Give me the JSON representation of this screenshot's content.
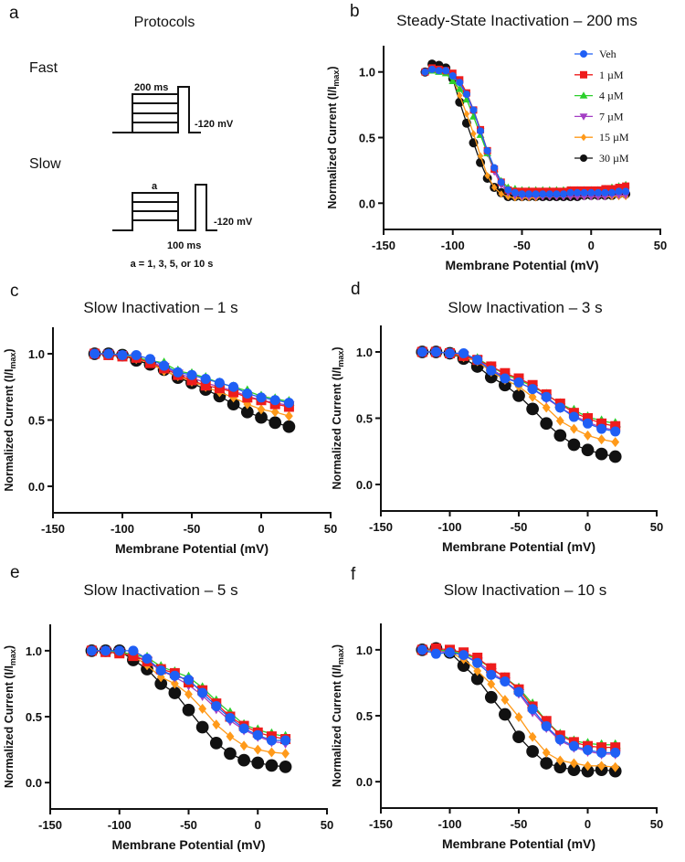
{
  "panel_a": {
    "label": "a",
    "title": "Protocols",
    "fast_label": "Fast",
    "slow_label": "Slow",
    "fast_duration": "200 ms",
    "fast_holding": "-120 mV",
    "slow_duration_var": "a",
    "slow_holding": "-120 mV",
    "slow_gap": "100 ms",
    "slow_note": "a = 1, 3, 5, or 10 s"
  },
  "legend": [
    {
      "name": "Veh",
      "color": "#1f5ff5",
      "marker": "circle"
    },
    {
      "name": "1 µM",
      "color": "#ee1c1c",
      "marker": "square"
    },
    {
      "name": "4 µM",
      "color": "#2ccf2c",
      "marker": "triangle-up"
    },
    {
      "name": "7 µM",
      "color": "#a43fc4",
      "marker": "triangle-down"
    },
    {
      "name": "15 µM",
      "color": "#ff9a1a",
      "marker": "diamond"
    },
    {
      "name": "30 µM",
      "color": "#111111",
      "marker": "circle"
    }
  ],
  "chart_data": [
    {
      "panel": "b",
      "type": "line",
      "title": "Steady-State Inactivation – 200 ms",
      "xlabel": "Membrane Potential (mV)",
      "ylabel": "Normalized Current (I/Imax)",
      "xlim": [
        -150,
        50
      ],
      "ylim": [
        -0.2,
        1.2
      ],
      "xticks": [
        -150,
        -100,
        -50,
        0,
        50
      ],
      "yticks": [
        "0.0",
        "0.5",
        "1.0"
      ],
      "legend": "top-right",
      "x": [
        -120,
        -115,
        -110,
        -105,
        -100,
        -95,
        -90,
        -85,
        -80,
        -75,
        -70,
        -65,
        -60,
        -55,
        -50,
        -45,
        -40,
        -35,
        -30,
        -25,
        -20,
        -15,
        -10,
        -5,
        0,
        5,
        10,
        15,
        20,
        25
      ],
      "series": [
        {
          "name": "Veh",
          "values": [
            1.0,
            1.02,
            1.01,
            1.01,
            0.97,
            0.92,
            0.83,
            0.71,
            0.55,
            0.4,
            0.27,
            0.16,
            0.1,
            0.08,
            0.07,
            0.07,
            0.07,
            0.07,
            0.07,
            0.07,
            0.07,
            0.08,
            0.08,
            0.08,
            0.08,
            0.08,
            0.08,
            0.08,
            0.09,
            0.09
          ]
        },
        {
          "name": "1 µM",
          "values": [
            1.0,
            1.03,
            1.02,
            1.01,
            0.99,
            0.94,
            0.84,
            0.71,
            0.56,
            0.4,
            0.26,
            0.16,
            0.1,
            0.09,
            0.09,
            0.09,
            0.09,
            0.09,
            0.09,
            0.09,
            0.09,
            0.1,
            0.1,
            0.1,
            0.1,
            0.1,
            0.11,
            0.11,
            0.12,
            0.13
          ]
        },
        {
          "name": "4 µM",
          "values": [
            1.0,
            1.01,
            1.0,
            0.99,
            0.93,
            0.87,
            0.79,
            0.66,
            0.52,
            0.38,
            0.26,
            0.17,
            0.12,
            0.11,
            0.1,
            0.1,
            0.1,
            0.1,
            0.1,
            0.1,
            0.1,
            0.1,
            0.1,
            0.1,
            0.1,
            0.1,
            0.11,
            0.12,
            0.13,
            0.14
          ]
        },
        {
          "name": "7 µM",
          "values": [
            1.0,
            1.02,
            1.01,
            1.0,
            0.96,
            0.91,
            0.82,
            0.7,
            0.55,
            0.38,
            0.24,
            0.14,
            0.08,
            0.06,
            0.05,
            0.05,
            0.05,
            0.05,
            0.05,
            0.05,
            0.05,
            0.05,
            0.05,
            0.05,
            0.05,
            0.05,
            0.05,
            0.06,
            0.06,
            0.06
          ]
        },
        {
          "name": "15 µM",
          "values": [
            1.0,
            1.03,
            1.02,
            1.01,
            0.95,
            0.82,
            0.68,
            0.53,
            0.36,
            0.21,
            0.12,
            0.07,
            0.05,
            0.04,
            0.04,
            0.04,
            0.04,
            0.05,
            0.05,
            0.05,
            0.05,
            0.05,
            0.05,
            0.05,
            0.05,
            0.05,
            0.05,
            0.05,
            0.05,
            0.05
          ]
        },
        {
          "name": "30 µM",
          "values": [
            1.0,
            1.06,
            1.05,
            1.03,
            0.95,
            0.77,
            0.61,
            0.46,
            0.31,
            0.19,
            0.12,
            0.08,
            0.05,
            0.05,
            0.05,
            0.05,
            0.05,
            0.05,
            0.05,
            0.05,
            0.05,
            0.05,
            0.05,
            0.06,
            0.06,
            0.06,
            0.06,
            0.06,
            0.07,
            0.07
          ]
        }
      ]
    },
    {
      "panel": "c",
      "type": "line",
      "title": "Slow Inactivation – 1 s",
      "xlabel": "Membrane Potential (mV)",
      "ylabel": "Normalized Current (I/Imax)",
      "xlim": [
        -150,
        50
      ],
      "ylim": [
        -0.2,
        1.2
      ],
      "xticks": [
        -150,
        -100,
        -50,
        0,
        50
      ],
      "yticks": [
        "0.0",
        "0.5",
        "1.0"
      ],
      "x": [
        -120,
        -110,
        -100,
        -90,
        -80,
        -70,
        -60,
        -50,
        -40,
        -30,
        -20,
        -10,
        0,
        10,
        20
      ],
      "series": [
        {
          "name": "Veh",
          "values": [
            1.0,
            1.0,
            0.99,
            0.99,
            0.96,
            0.91,
            0.86,
            0.84,
            0.81,
            0.78,
            0.75,
            0.7,
            0.67,
            0.65,
            0.63
          ]
        },
        {
          "name": "1 µM",
          "values": [
            1.0,
            0.99,
            0.98,
            0.97,
            0.93,
            0.89,
            0.84,
            0.8,
            0.76,
            0.74,
            0.71,
            0.67,
            0.65,
            0.62,
            0.6
          ]
        },
        {
          "name": "4 µM",
          "values": [
            1.0,
            1.0,
            0.99,
            0.97,
            0.95,
            0.93,
            0.87,
            0.85,
            0.82,
            0.78,
            0.75,
            0.72,
            0.68,
            0.66,
            0.64
          ]
        },
        {
          "name": "7 µM",
          "values": [
            1.0,
            1.0,
            0.99,
            0.97,
            0.94,
            0.9,
            0.85,
            0.82,
            0.78,
            0.75,
            0.72,
            0.68,
            0.65,
            0.63,
            0.61
          ]
        },
        {
          "name": "15 µM",
          "values": [
            1.0,
            1.0,
            0.99,
            0.96,
            0.93,
            0.87,
            0.83,
            0.79,
            0.75,
            0.71,
            0.67,
            0.62,
            0.58,
            0.56,
            0.53
          ]
        },
        {
          "name": "30 µM",
          "values": [
            1.0,
            1.0,
            0.99,
            0.95,
            0.92,
            0.88,
            0.82,
            0.78,
            0.73,
            0.68,
            0.62,
            0.56,
            0.52,
            0.48,
            0.45
          ]
        }
      ]
    },
    {
      "panel": "d",
      "type": "line",
      "title": "Slow Inactivation – 3 s",
      "xlabel": "Membrane Potential (mV)",
      "ylabel": "Normalized Current (I/Imax)",
      "xlim": [
        -150,
        50
      ],
      "ylim": [
        -0.2,
        1.2
      ],
      "xticks": [
        -150,
        -100,
        -50,
        0,
        50
      ],
      "yticks": [
        "0.0",
        "0.5",
        "1.0"
      ],
      "x": [
        -120,
        -110,
        -100,
        -90,
        -80,
        -70,
        -60,
        -50,
        -40,
        -30,
        -20,
        -10,
        0,
        10,
        20
      ],
      "series": [
        {
          "name": "Veh",
          "values": [
            1.0,
            1.0,
            0.99,
            0.99,
            0.94,
            0.86,
            0.8,
            0.77,
            0.72,
            0.66,
            0.58,
            0.51,
            0.46,
            0.42,
            0.4
          ]
        },
        {
          "name": "1 µM",
          "values": [
            1.0,
            1.0,
            0.99,
            0.97,
            0.94,
            0.89,
            0.84,
            0.8,
            0.75,
            0.68,
            0.61,
            0.54,
            0.5,
            0.46,
            0.44
          ]
        },
        {
          "name": "4 µM",
          "values": [
            1.0,
            1.0,
            0.99,
            0.97,
            0.95,
            0.89,
            0.83,
            0.79,
            0.74,
            0.68,
            0.61,
            0.56,
            0.51,
            0.48,
            0.46
          ]
        },
        {
          "name": "7 µM",
          "values": [
            1.0,
            1.0,
            0.99,
            0.97,
            0.94,
            0.87,
            0.81,
            0.77,
            0.72,
            0.65,
            0.58,
            0.52,
            0.47,
            0.43,
            0.41
          ]
        },
        {
          "name": "15 µM",
          "values": [
            1.0,
            1.0,
            0.99,
            0.96,
            0.93,
            0.85,
            0.79,
            0.74,
            0.66,
            0.58,
            0.48,
            0.42,
            0.37,
            0.34,
            0.32
          ]
        },
        {
          "name": "30 µM",
          "values": [
            1.0,
            1.0,
            0.99,
            0.95,
            0.89,
            0.81,
            0.75,
            0.67,
            0.57,
            0.46,
            0.37,
            0.3,
            0.26,
            0.23,
            0.21
          ]
        }
      ]
    },
    {
      "panel": "e",
      "type": "line",
      "title": "Slow Inactivation – 5 s",
      "xlabel": "Membrane Potential (mV)",
      "ylabel": "Normalized Current (I/Imax)",
      "xlim": [
        -150,
        50
      ],
      "ylim": [
        -0.2,
        1.2
      ],
      "xticks": [
        -150,
        -100,
        -50,
        0,
        50
      ],
      "yticks": [
        "0.0",
        "0.5",
        "1.0"
      ],
      "x": [
        -120,
        -110,
        -100,
        -90,
        -80,
        -70,
        -60,
        -50,
        -40,
        -30,
        -20,
        -10,
        0,
        10,
        20
      ],
      "series": [
        {
          "name": "Veh",
          "values": [
            1.0,
            1.0,
            1.0,
            1.0,
            0.94,
            0.85,
            0.81,
            0.78,
            0.68,
            0.58,
            0.49,
            0.41,
            0.36,
            0.32,
            0.32
          ]
        },
        {
          "name": "1 µM",
          "values": [
            1.0,
            0.99,
            0.98,
            0.96,
            0.92,
            0.86,
            0.83,
            0.76,
            0.7,
            0.6,
            0.5,
            0.43,
            0.38,
            0.35,
            0.33
          ]
        },
        {
          "name": "4 µM",
          "values": [
            1.0,
            1.0,
            0.99,
            0.97,
            0.95,
            0.88,
            0.84,
            0.8,
            0.72,
            0.62,
            0.53,
            0.44,
            0.4,
            0.37,
            0.35
          ]
        },
        {
          "name": "7 µM",
          "values": [
            1.0,
            1.0,
            0.99,
            0.97,
            0.92,
            0.85,
            0.8,
            0.74,
            0.66,
            0.56,
            0.47,
            0.4,
            0.35,
            0.31,
            0.3
          ]
        },
        {
          "name": "15 µM",
          "values": [
            1.0,
            1.0,
            0.99,
            0.96,
            0.89,
            0.8,
            0.75,
            0.67,
            0.56,
            0.44,
            0.35,
            0.28,
            0.25,
            0.23,
            0.22
          ]
        },
        {
          "name": "30 µM",
          "values": [
            1.0,
            1.0,
            1.0,
            0.93,
            0.86,
            0.75,
            0.68,
            0.55,
            0.42,
            0.3,
            0.22,
            0.17,
            0.15,
            0.13,
            0.12
          ]
        }
      ]
    },
    {
      "panel": "f",
      "type": "line",
      "title": "Slow Inactivation – 10 s",
      "xlabel": "Membrane Potential (mV)",
      "ylabel": "Normalized Current (I/Imax)",
      "xlim": [
        -150,
        50
      ],
      "ylim": [
        -0.2,
        1.2
      ],
      "xticks": [
        -150,
        -100,
        -50,
        0,
        50
      ],
      "yticks": [
        "0.0",
        "0.5",
        "1.0"
      ],
      "x": [
        -120,
        -110,
        -100,
        -90,
        -80,
        -70,
        -60,
        -50,
        -40,
        -30,
        -20,
        -10,
        0,
        10,
        20
      ],
      "series": [
        {
          "name": "Veh",
          "values": [
            1.0,
            0.97,
            0.98,
            0.96,
            0.9,
            0.81,
            0.76,
            0.68,
            0.55,
            0.42,
            0.32,
            0.27,
            0.24,
            0.22,
            0.22
          ]
        },
        {
          "name": "1 µM",
          "values": [
            1.0,
            1.01,
            1.0,
            0.98,
            0.94,
            0.86,
            0.79,
            0.7,
            0.57,
            0.46,
            0.35,
            0.3,
            0.27,
            0.26,
            0.26
          ]
        },
        {
          "name": "4 µM",
          "values": [
            1.0,
            1.0,
            0.99,
            0.97,
            0.93,
            0.86,
            0.79,
            0.71,
            0.59,
            0.46,
            0.36,
            0.31,
            0.29,
            0.28,
            0.28
          ]
        },
        {
          "name": "7 µM",
          "values": [
            1.0,
            0.99,
            0.98,
            0.96,
            0.91,
            0.83,
            0.76,
            0.67,
            0.53,
            0.41,
            0.31,
            0.26,
            0.23,
            0.21,
            0.21
          ]
        },
        {
          "name": "15 µM",
          "values": [
            1.0,
            1.0,
            0.98,
            0.93,
            0.84,
            0.74,
            0.62,
            0.49,
            0.34,
            0.22,
            0.16,
            0.14,
            0.12,
            0.12,
            0.11
          ]
        },
        {
          "name": "30 µM",
          "values": [
            1.0,
            1.01,
            0.98,
            0.88,
            0.78,
            0.64,
            0.51,
            0.34,
            0.23,
            0.14,
            0.11,
            0.09,
            0.08,
            0.09,
            0.08
          ]
        }
      ]
    }
  ]
}
